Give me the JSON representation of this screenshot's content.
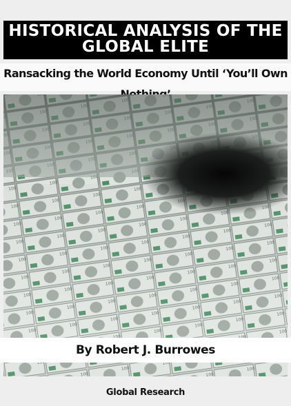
{
  "title": [
    "HISTORICAL ANALYSIS OF THE",
    "GLOBAL ELITE"
  ],
  "subtitle": "Ransacking the World Economy Until ‘You’ll Own Nothing’",
  "author": "By Robert J. Burrowes",
  "publisher": "Global Research"
}
